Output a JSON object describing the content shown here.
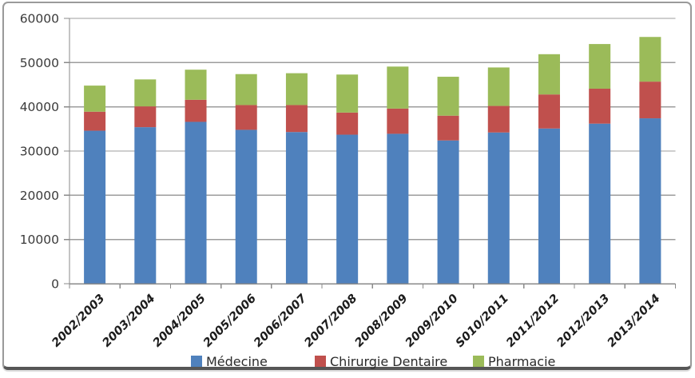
{
  "chart_data": {
    "type": "bar",
    "stacked": true,
    "title": "",
    "xlabel": "",
    "ylabel": "",
    "categories": [
      "2002/2003",
      "2003/2004",
      "2004/2005",
      "2005/2006",
      "2006/2007",
      "2007/2008",
      "2008/2009",
      "2009/2010",
      "S010/2011",
      "2011/2012",
      "2012/2013",
      "2013/2014"
    ],
    "series": [
      {
        "name": "Médecine",
        "color": "#4f81bd",
        "values": [
          34600,
          35400,
          36600,
          34800,
          34300,
          33700,
          33900,
          32400,
          34200,
          35100,
          36200,
          37400
        ]
      },
      {
        "name": "Chirurgie Dentaire",
        "color": "#c0504d",
        "values": [
          4300,
          4700,
          5000,
          5600,
          6100,
          5000,
          5700,
          5600,
          6000,
          7700,
          7900,
          8300
        ]
      },
      {
        "name": "Pharmacie",
        "color": "#9bbb59",
        "values": [
          5900,
          6100,
          6800,
          7000,
          7200,
          8600,
          9500,
          8800,
          8700,
          9100,
          10100,
          10100
        ]
      }
    ],
    "stack_totals": [
      44800,
      46200,
      48400,
      47400,
      47600,
      47300,
      49100,
      46800,
      48900,
      51900,
      54200,
      55800
    ],
    "ylim": [
      0,
      60000
    ],
    "ytick_step": 10000,
    "ytick_labels": [
      "0",
      "10000",
      "20000",
      "30000",
      "40000",
      "50000",
      "60000"
    ],
    "grid": true,
    "legend_position": "bottom",
    "colors": {
      "grid": "#9c9c9c",
      "axis": "#8a8a8a",
      "tick_label": "#3a3a3a",
      "category_label": "#1c1c1c",
      "legend_text": "#2b2b2b",
      "frame_border": "#9a9a9a",
      "frame_bottom": "#565656",
      "plot_background": "#ffffff"
    }
  }
}
